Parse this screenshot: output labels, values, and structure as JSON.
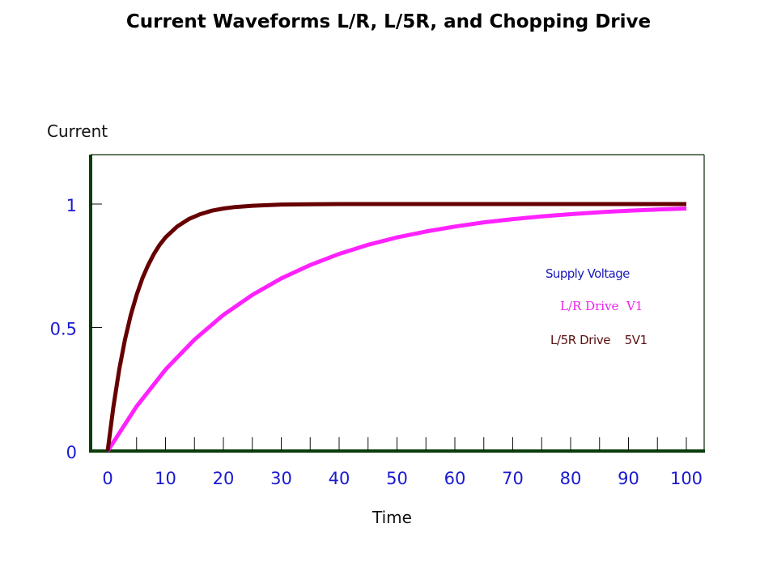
{
  "chart_data": {
    "type": "line",
    "title": "Current Waveforms L/R, L/5R, and Chopping Drive",
    "xlabel": "Time",
    "ylabel": "Current",
    "xlim": [
      0,
      100
    ],
    "ylim": [
      0,
      1.2
    ],
    "x_ticks": [
      0,
      10,
      20,
      30,
      40,
      50,
      60,
      70,
      80,
      90,
      100
    ],
    "x_minor_ticks": [
      5,
      10,
      15,
      20,
      25,
      30,
      35,
      40,
      45,
      50,
      55,
      60,
      65,
      70,
      75,
      80,
      85,
      90,
      95,
      100
    ],
    "y_ticks": [
      0,
      0.5,
      1
    ],
    "y_tick_labels": [
      "0",
      "0.5",
      "1"
    ],
    "grid": false,
    "legend_placement": "right",
    "series": [
      {
        "name": "L/5R Drive",
        "color": "#660000",
        "x": [
          0,
          1,
          2,
          3,
          4,
          5,
          6,
          7,
          8,
          9,
          10,
          12,
          14,
          16,
          18,
          20,
          22,
          25,
          30,
          35,
          40,
          50,
          60,
          70,
          80,
          90,
          100
        ],
        "y": [
          0,
          0.181,
          0.33,
          0.451,
          0.551,
          0.632,
          0.699,
          0.753,
          0.798,
          0.835,
          0.865,
          0.909,
          0.939,
          0.959,
          0.973,
          0.982,
          0.988,
          0.993,
          0.998,
          0.999,
          1.0,
          1.0,
          1.0,
          1.0,
          1.0,
          1.0,
          1.0
        ]
      },
      {
        "name": "L/R Drive",
        "color": "#ff22ff",
        "x": [
          0,
          5,
          10,
          15,
          20,
          25,
          30,
          35,
          40,
          45,
          50,
          55,
          60,
          65,
          70,
          75,
          80,
          85,
          90,
          95,
          100
        ],
        "y": [
          0,
          0.181,
          0.33,
          0.451,
          0.551,
          0.632,
          0.699,
          0.753,
          0.798,
          0.835,
          0.865,
          0.889,
          0.909,
          0.926,
          0.939,
          0.95,
          0.959,
          0.967,
          0.973,
          0.978,
          0.982
        ]
      }
    ],
    "annotations": [
      {
        "text": "Supply Voltage",
        "color": "#1a1ab8"
      },
      {
        "text": "L/R Drive  V1",
        "color": "#ee22ee"
      },
      {
        "text": "L/5R Drive    5V1",
        "color": "#5a1010"
      }
    ],
    "axis_color": "#0b3d0b",
    "tick_label_color": "#1a1ad0"
  }
}
